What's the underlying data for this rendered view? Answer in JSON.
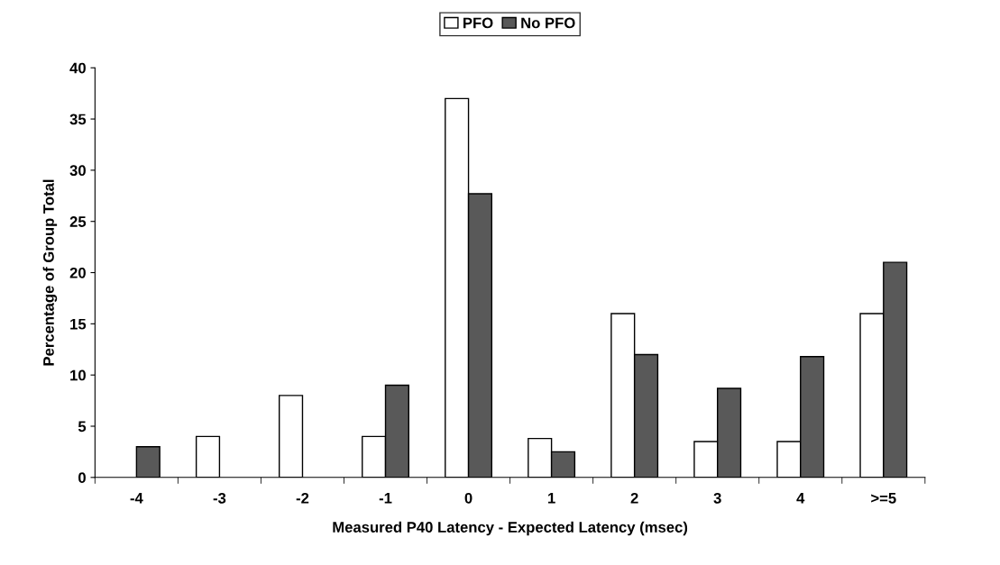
{
  "chart_data": {
    "type": "bar",
    "xlabel": "Measured P40 Latency - Expected Latency (msec)",
    "ylabel": "Percentage of Group Total",
    "categories": [
      "-4",
      "-3",
      "-2",
      "-1",
      "0",
      "1",
      "2",
      "3",
      "4",
      ">=5"
    ],
    "series": [
      {
        "name": "PFO",
        "color": "#ffffff",
        "values": [
          null,
          4,
          8,
          4,
          37,
          3.8,
          16,
          3.5,
          3.5,
          16
        ]
      },
      {
        "name": "No PFO",
        "color": "#595959",
        "values": [
          3,
          null,
          null,
          9,
          27.7,
          2.5,
          12,
          8.7,
          11.8,
          21
        ]
      }
    ],
    "ylim": [
      0,
      40
    ],
    "yticks": [
      0,
      5,
      10,
      15,
      20,
      25,
      30,
      35,
      40
    ],
    "grid": false,
    "legend": "top"
  }
}
